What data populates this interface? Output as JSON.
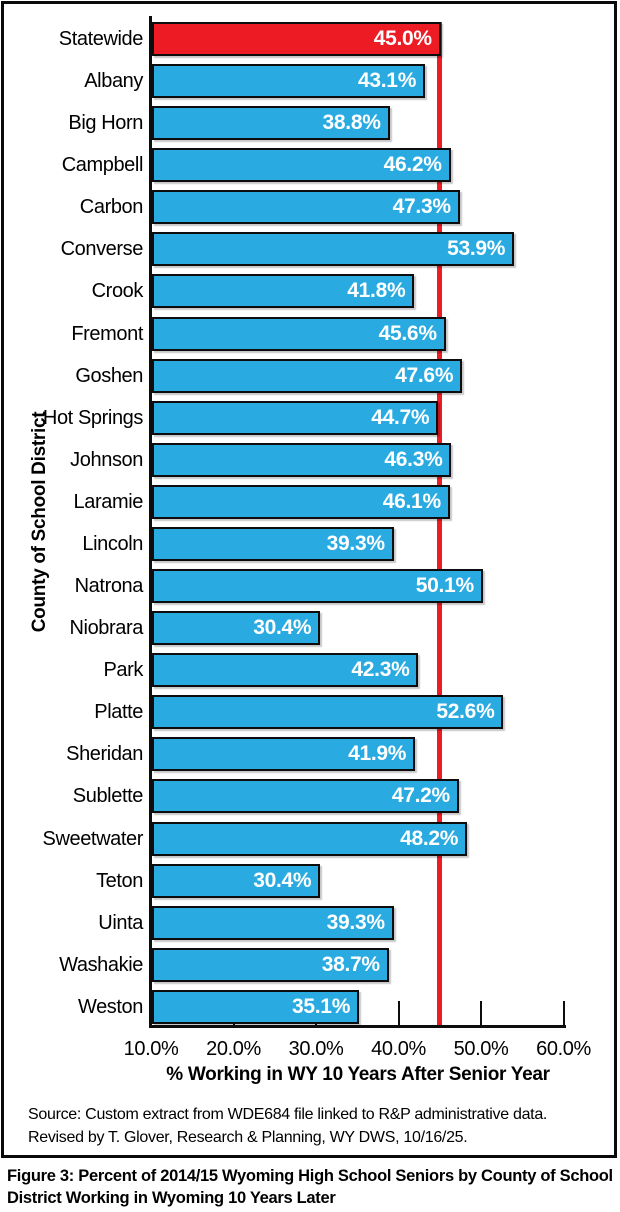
{
  "chart_data": {
    "type": "bar",
    "orientation": "horizontal",
    "title": "",
    "xlabel": "% Working in WY 10 Years After Senior Year",
    "ylabel": "County of School District",
    "xlim": [
      10,
      60
    ],
    "grid": false,
    "legend": false,
    "categories": [
      "Statewide",
      "Albany",
      "Big Horn",
      "Campbell",
      "Carbon",
      "Converse",
      "Crook",
      "Fremont",
      "Goshen",
      "Hot Springs",
      "Johnson",
      "Laramie",
      "Lincoln",
      "Natrona",
      "Niobrara",
      "Park",
      "Platte",
      "Sheridan",
      "Sublette",
      "Sweetwater",
      "Teton",
      "Uinta",
      "Washakie",
      "Weston"
    ],
    "values": [
      45.0,
      43.1,
      38.8,
      46.2,
      47.3,
      53.9,
      41.8,
      45.6,
      47.6,
      44.7,
      46.3,
      46.1,
      39.3,
      50.1,
      30.4,
      42.3,
      52.6,
      41.9,
      47.2,
      48.2,
      30.4,
      39.3,
      38.7,
      35.1
    ],
    "value_labels": [
      "45.0%",
      "43.1%",
      "38.8%",
      "46.2%",
      "47.3%",
      "53.9%",
      "41.8%",
      "45.6%",
      "47.6%",
      "44.7%",
      "46.3%",
      "46.1%",
      "39.3%",
      "50.1%",
      "30.4%",
      "42.3%",
      "52.6%",
      "41.9%",
      "47.2%",
      "48.2%",
      "30.4%",
      "39.3%",
      "38.7%",
      "35.1%"
    ],
    "highlight_index": 0,
    "reference_line": {
      "value": 45.0,
      "label": "Statewide",
      "color": "#ED1C24"
    },
    "x_ticks": [
      {
        "value": 10,
        "label": "10.0%"
      },
      {
        "value": 20,
        "label": "20.0%"
      },
      {
        "value": 30,
        "label": "30.0%"
      },
      {
        "value": 40,
        "label": "40.0%"
      },
      {
        "value": 50,
        "label": "50.0%"
      },
      {
        "value": 60,
        "label": "60.0%"
      }
    ],
    "colors": {
      "bar_fill": "#29ABE2",
      "highlight_fill": "#ED1C24",
      "bar_border": "#0d0d0d",
      "value_text": "#FFFFFF",
      "reference_line": "#ED1C24"
    }
  },
  "source_note": {
    "line1": "Source: Custom extract from WDE684 file linked to R&P administrative data.",
    "line2": "Revised by T. Glover, Research & Planning, WY DWS, 10/16/25."
  },
  "caption": {
    "line1": "Figure 3: Percent of 2014/15 Wyoming High School Seniors by County of School",
    "line2": "District Working in Wyoming 10 Years Later"
  }
}
